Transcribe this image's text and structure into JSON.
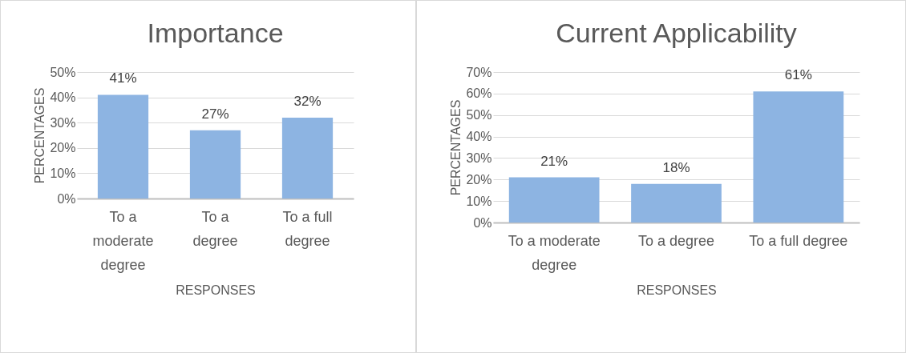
{
  "chart_data": [
    {
      "type": "bar",
      "title": "Importance",
      "xlabel": "RESPONSES",
      "ylabel": "PERCENTAGES",
      "categories": [
        "To a moderate degree",
        "To a degree",
        "To a full degree"
      ],
      "values": [
        41,
        27,
        32
      ],
      "value_labels": [
        "41%",
        "27%",
        "32%"
      ],
      "color": "#8db4e2",
      "ylim": [
        0,
        50
      ],
      "yticks": [
        {
          "value": 0,
          "label": "0%"
        },
        {
          "value": 10,
          "label": "10%"
        },
        {
          "value": 20,
          "label": "20%"
        },
        {
          "value": 30,
          "label": "30%"
        },
        {
          "value": 40,
          "label": "40%"
        },
        {
          "value": 50,
          "label": "50%"
        }
      ],
      "grid": true
    },
    {
      "type": "bar",
      "title": "Current Applicability",
      "xlabel": "RESPONSES",
      "ylabel": "PERCENTAGES",
      "categories": [
        "To a moderate degree",
        "To a degree",
        "To a full degree"
      ],
      "values": [
        21,
        18,
        61
      ],
      "value_labels": [
        "21%",
        "18%",
        "61%"
      ],
      "color": "#8db4e2",
      "ylim": [
        0,
        70
      ],
      "yticks": [
        {
          "value": 0,
          "label": "0%"
        },
        {
          "value": 10,
          "label": "10%"
        },
        {
          "value": 20,
          "label": "20%"
        },
        {
          "value": 30,
          "label": "30%"
        },
        {
          "value": 40,
          "label": "40%"
        },
        {
          "value": 50,
          "label": "50%"
        },
        {
          "value": 60,
          "label": "60%"
        },
        {
          "value": 70,
          "label": "70%"
        }
      ],
      "grid": true
    }
  ]
}
